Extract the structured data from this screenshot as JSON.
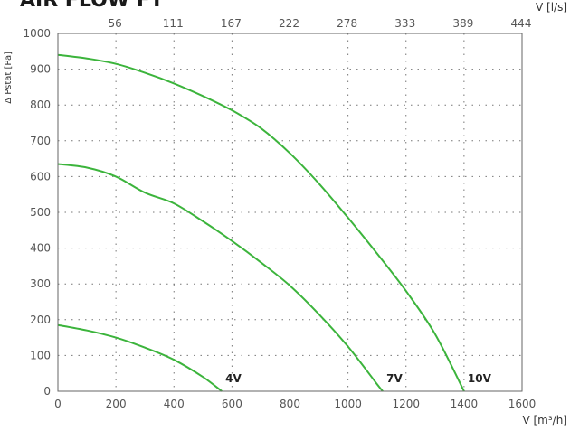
{
  "title": "AIR FLOW FT",
  "chart_data": {
    "type": "line",
    "xlabel": "V [m³/h]",
    "x2label": "V [l/s]",
    "ylabel": "Δ Pstat [Pa]",
    "xlim": [
      0,
      1600
    ],
    "ylim": [
      0,
      1000
    ],
    "x_ticks": [
      0,
      200,
      400,
      600,
      800,
      1000,
      1200,
      1400,
      1600
    ],
    "y_ticks": [
      0,
      100,
      200,
      300,
      400,
      500,
      600,
      700,
      800,
      900,
      1000
    ],
    "x2_ticks": [
      "56",
      "111",
      "167",
      "222",
      "278",
      "333",
      "389",
      "444"
    ],
    "x2_tick_positions_m3h": [
      200,
      400,
      600,
      800,
      1000,
      1200,
      1400,
      1600
    ],
    "grid": true,
    "line_color": "#3cb43c",
    "series": [
      {
        "name": "4V",
        "x": [
          0,
          100,
          200,
          300,
          400,
          500,
          565
        ],
        "y": [
          185,
          170,
          150,
          122,
          88,
          40,
          0
        ]
      },
      {
        "name": "7V",
        "x": [
          0,
          100,
          200,
          300,
          400,
          500,
          600,
          700,
          800,
          900,
          1000,
          1100,
          1120
        ],
        "y": [
          635,
          625,
          600,
          555,
          525,
          475,
          420,
          360,
          295,
          215,
          125,
          20,
          0
        ]
      },
      {
        "name": "10V",
        "x": [
          0,
          100,
          200,
          300,
          400,
          500,
          600,
          700,
          800,
          900,
          1000,
          1100,
          1200,
          1300,
          1400
        ],
        "y": [
          940,
          930,
          915,
          890,
          860,
          825,
          785,
          735,
          665,
          580,
          485,
          385,
          280,
          160,
          0
        ]
      }
    ]
  }
}
